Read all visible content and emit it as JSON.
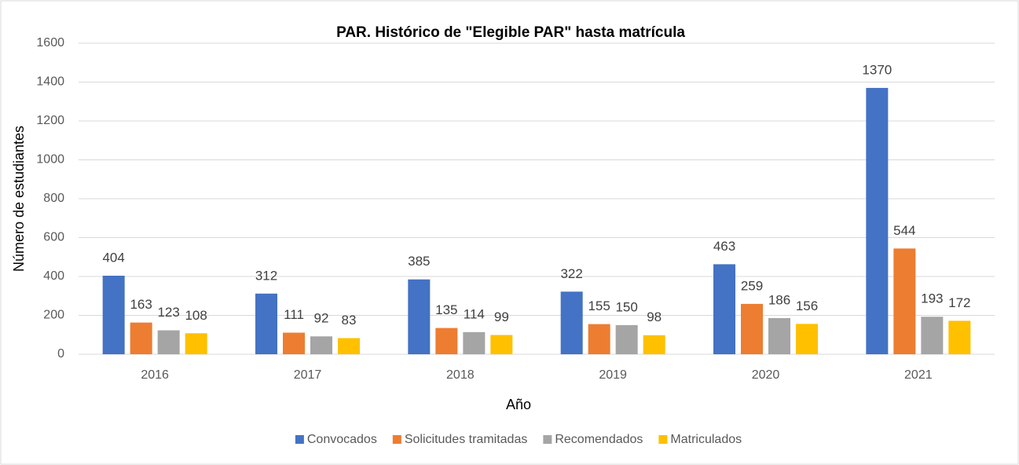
{
  "chart_data": {
    "type": "bar",
    "title": "PAR. Histórico de \"Elegible PAR\" hasta matrícula",
    "x_label": "Año",
    "y_label": "Número de estudiantes",
    "categories": [
      "2016",
      "2017",
      "2018",
      "2019",
      "2020",
      "2021"
    ],
    "series": [
      {
        "name": "Convocados",
        "color": "#4472c4",
        "values": [
          404,
          312,
          385,
          322,
          463,
          1370
        ]
      },
      {
        "name": "Solicitudes tramitadas",
        "color": "#ed7d31",
        "values": [
          163,
          111,
          135,
          155,
          259,
          544
        ]
      },
      {
        "name": "Recomendados",
        "color": "#a5a5a5",
        "values": [
          123,
          92,
          114,
          150,
          186,
          193
        ]
      },
      {
        "name": "Matriculados",
        "color": "#ffc000",
        "values": [
          108,
          83,
          99,
          98,
          156,
          172
        ]
      }
    ],
    "ylim": [
      0,
      1600
    ],
    "yticks": [
      0,
      200,
      400,
      600,
      800,
      1000,
      1200,
      1400,
      1600
    ],
    "grid": true,
    "legend": "bottom"
  }
}
